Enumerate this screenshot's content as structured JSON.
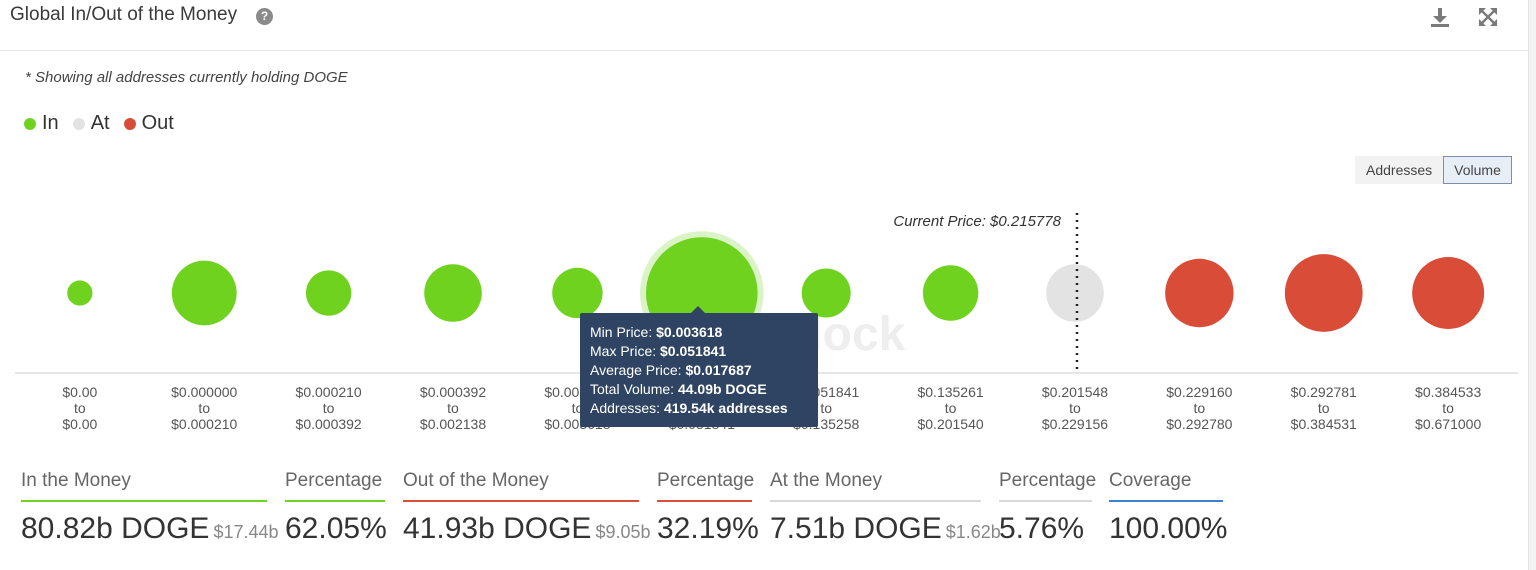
{
  "header": {
    "title": "Global In/Out of the Money",
    "help": "?"
  },
  "note": "* Showing all addresses currently holding DOGE",
  "legend": [
    {
      "label": "In",
      "color": "#6fd21f"
    },
    {
      "label": "At",
      "color": "#e3e3e3"
    },
    {
      "label": "Out",
      "color": "#d94c38"
    }
  ],
  "toggle": {
    "addresses": "Addresses",
    "volume": "Volume",
    "active": "Volume"
  },
  "watermark": "block",
  "chart_data": {
    "type": "bubble",
    "metric": "Volume",
    "current_price_label": "Current Price: $0.215778",
    "current_price_after_bucket": 8,
    "buckets": [
      {
        "from": "$0.00",
        "to": "$0.00",
        "status": "in",
        "size": 0.35
      },
      {
        "from": "$0.000000",
        "to": "$0.000210",
        "status": "in",
        "size": 0.9
      },
      {
        "from": "$0.000210",
        "to": "$0.000392",
        "status": "in",
        "size": 0.63
      },
      {
        "from": "$0.000392",
        "to": "$0.002138",
        "status": "in",
        "size": 0.8
      },
      {
        "from": "$0.002138",
        "to": "$0.003618",
        "status": "in",
        "size": 0.7
      },
      {
        "from": "$0.003618",
        "to": "$0.051841",
        "status": "in",
        "size": 1.55
      },
      {
        "from": "$0.051841",
        "to": "$0.135258",
        "status": "in",
        "size": 0.68
      },
      {
        "from": "$0.135261",
        "to": "$0.201540",
        "status": "in",
        "size": 0.77
      },
      {
        "from": "$0.201548",
        "to": "$0.229156",
        "status": "at",
        "size": 0.8
      },
      {
        "from": "$0.229160",
        "to": "$0.292780",
        "status": "out",
        "size": 0.95
      },
      {
        "from": "$0.292781",
        "to": "$0.384531",
        "status": "out",
        "size": 1.08
      },
      {
        "from": "$0.384533",
        "to": "$0.671000",
        "status": "out",
        "size": 1.0
      }
    ],
    "highlighted_bucket": 5,
    "tooltip": [
      {
        "label": "Min Price:",
        "value": "$0.003618"
      },
      {
        "label": "Max Price:",
        "value": "$0.051841"
      },
      {
        "label": "Average Price:",
        "value": "$0.017687"
      },
      {
        "label": "Total Volume:",
        "value": "44.09b DOGE"
      },
      {
        "label": "Addresses:",
        "value": "419.54k addresses"
      }
    ]
  },
  "stats": [
    {
      "label": "In the Money",
      "value": "80.82b DOGE",
      "sub": "$17.44b",
      "color": "#6fd21f"
    },
    {
      "label": "Percentage",
      "value": "62.05%",
      "sub": "",
      "color": "#6fd21f"
    },
    {
      "label": "Out of the Money",
      "value": "41.93b DOGE",
      "sub": "$9.05b",
      "color": "#d94c38"
    },
    {
      "label": "Percentage",
      "value": "32.19%",
      "sub": "",
      "color": "#d94c38"
    },
    {
      "label": "At the Money",
      "value": "7.51b DOGE",
      "sub": "$1.62b",
      "color": "#d8d8d8"
    },
    {
      "label": "Percentage",
      "value": "5.76%",
      "sub": "",
      "color": "#d8d8d8"
    },
    {
      "label": "Coverage",
      "value": "100.00%",
      "sub": "",
      "color": "#3b7fd1"
    }
  ]
}
